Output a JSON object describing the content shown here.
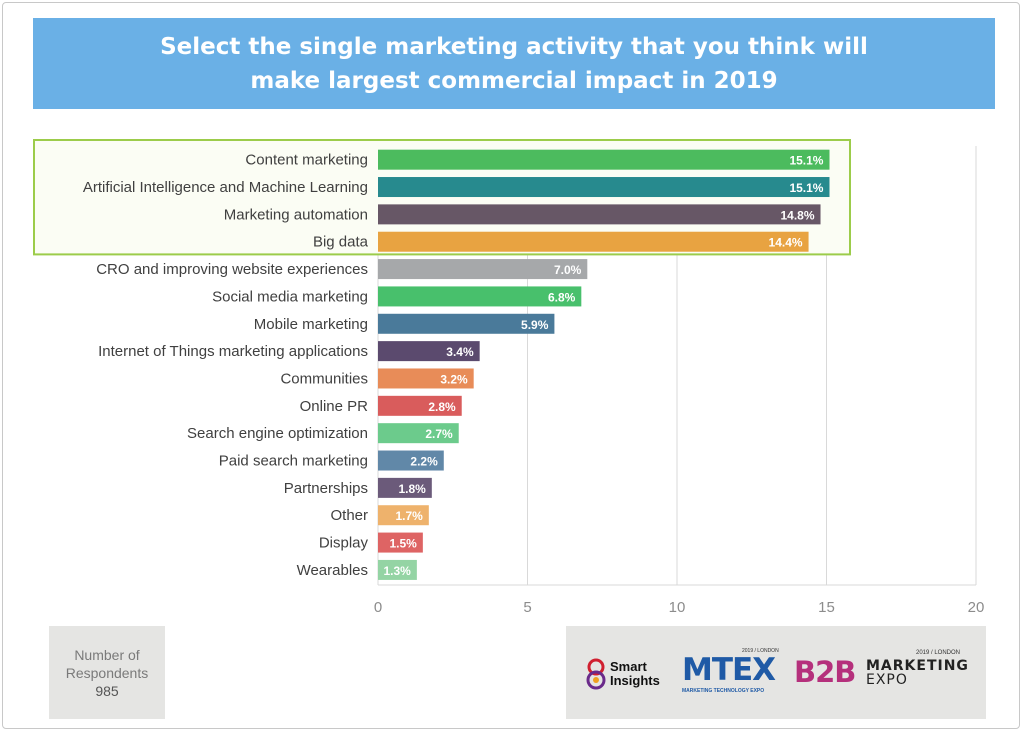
{
  "title": {
    "text": "Select the single marketing activity that you think will make largest commercial impact in 2019"
  },
  "respondents": {
    "label": "Number of Respondents",
    "value": "985"
  },
  "logos": {
    "smart_insights": "Smart Insights",
    "mtex_edition": "2019 / LONDON",
    "mtex_name": "MTEX",
    "mtex_tagline": "MARKETING TECHNOLOGY EXPO",
    "b2b_edition": "2019 / LONDON",
    "b2b_name": "B2B",
    "b2b_marketing": "MARKETING",
    "b2b_expo": "EXPO"
  },
  "chart_data": {
    "type": "bar",
    "orientation": "horizontal",
    "categories": [
      "Content marketing",
      "Artificial Intelligence and Machine Learning",
      "Marketing automation",
      "Big data",
      "CRO and improving website experiences",
      "Social media marketing",
      "Mobile marketing",
      "Internet of Things marketing applications",
      "Communities",
      "Online PR",
      "Search engine optimization",
      "Paid search marketing",
      "Partnerships",
      "Other",
      "Display",
      "Wearables"
    ],
    "values": [
      15.1,
      15.1,
      14.8,
      14.4,
      7.0,
      6.8,
      5.9,
      3.4,
      3.2,
      2.8,
      2.7,
      2.2,
      1.8,
      1.7,
      1.5,
      1.3
    ],
    "data_labels": [
      "15.1%",
      "15.1%",
      "14.8%",
      "14.4%",
      "7.0%",
      "6.8%",
      "5.9%",
      "3.4%",
      "3.2%",
      "2.8%",
      "2.7%",
      "2.2%",
      "1.8%",
      "1.7%",
      "1.5%",
      "1.3%"
    ],
    "colors": [
      "#4cbb5e",
      "#278a8e",
      "#675766",
      "#e8a341",
      "#a6a8aa",
      "#48c06c",
      "#4a7a9a",
      "#5b4a6e",
      "#e88c58",
      "#d95c5c",
      "#6ccb8c",
      "#6188a8",
      "#6b5a7a",
      "#eeb26c",
      "#de6464",
      "#94d4a4"
    ],
    "highlight_color": "#9ccc4a",
    "highlighted_count": 4,
    "xlim": [
      0,
      20
    ],
    "xticks": [
      0,
      5,
      10,
      15,
      20
    ],
    "grid": true
  }
}
